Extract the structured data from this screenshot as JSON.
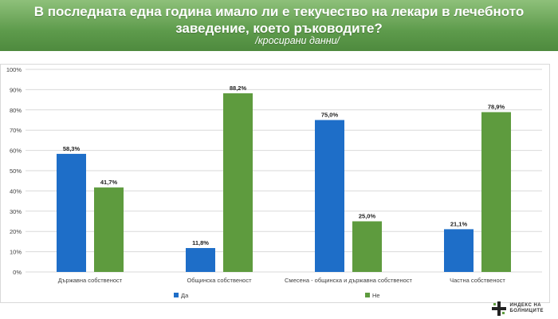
{
  "header": {
    "title_line1": "В последната една година имало ли е текучество на лекари в лечебното",
    "title_line2": "заведение, което ръководите?",
    "subtitle": "/кросирани данни/"
  },
  "logo": {
    "line1": "ИНДЕКС НА",
    "line2": "БОЛНИЦИТЕ"
  },
  "colors": {
    "yes": "#1e6ec8",
    "no": "#5e9b3e",
    "grid": "#d9d9d9",
    "axis_text": "#404040"
  },
  "chart_data": {
    "type": "bar",
    "categories": [
      "Държавна собственост",
      "Общинска собственост",
      "Смесена - общинска и държавна собственост",
      "Частна собственост"
    ],
    "series": [
      {
        "name": "Да",
        "values": [
          58.3,
          11.8,
          75.0,
          21.1
        ],
        "labels": [
          "58,3%",
          "11,8%",
          "75,0%",
          "21,1%"
        ]
      },
      {
        "name": "Не",
        "values": [
          41.7,
          88.2,
          25.0,
          78.9
        ],
        "labels": [
          "41,7%",
          "88,2%",
          "25,0%",
          "78,9%"
        ]
      }
    ],
    "ylim": [
      0,
      100
    ],
    "yticks": [
      "0%",
      "10%",
      "20%",
      "30%",
      "40%",
      "50%",
      "60%",
      "70%",
      "80%",
      "90%",
      "100%"
    ],
    "grid": true,
    "legend_position": "bottom"
  }
}
